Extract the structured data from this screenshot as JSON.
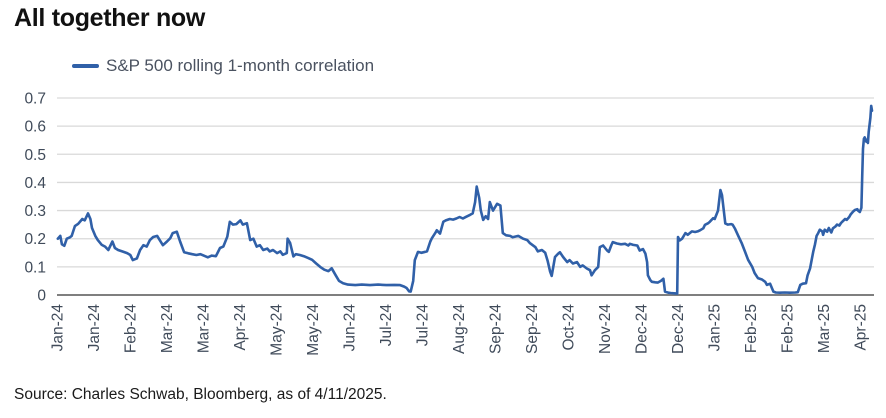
{
  "title": "All together now",
  "legend": {
    "label": "S&P 500 rolling 1-month correlation"
  },
  "source": "Source: Charles Schwab, Bloomberg, as of 4/11/2025.",
  "colors": {
    "line": "#3060A8",
    "grid": "#D9D9D9",
    "zero_axis": "#7F7F7F",
    "tick_text": "#404B5A",
    "legend_text": "#4A5260",
    "title_text": "#111111"
  },
  "chart_data": {
    "type": "line",
    "title": "All together now",
    "series_name": "S&P 500 rolling 1-month correlation",
    "xlabel": "",
    "ylabel": "",
    "ylim": [
      0,
      0.7
    ],
    "yticks": [
      0,
      0.1,
      0.2,
      0.3,
      0.4,
      0.5,
      0.6,
      0.7
    ],
    "ytick_labels": [
      "0",
      "0.1",
      "0.2",
      "0.3",
      "0.4",
      "0.5",
      "0.6",
      "0.7"
    ],
    "xtick_labels": [
      "Jan-24",
      "Jan-24",
      "Feb-24",
      "Mar-24",
      "Mar-24",
      "Apr-24",
      "May-24",
      "May-24",
      "Jun-24",
      "Jul-24",
      "Jul-24",
      "Aug-24",
      "Sep-24",
      "Sep-24",
      "Oct-24",
      "Nov-24",
      "Dec-24",
      "Dec-24",
      "Jan-25",
      "Feb-25",
      "Feb-25",
      "Mar-25",
      "Apr-25"
    ],
    "grid": "horizontal",
    "legend_position": "top-left",
    "x_unit": "fraction of time axis from Jan-24 to Apr-25 (daily rolling correlation)",
    "points": [
      [
        0.001,
        0.2
      ],
      [
        0.004,
        0.21
      ],
      [
        0.006,
        0.18
      ],
      [
        0.009,
        0.175
      ],
      [
        0.012,
        0.2
      ],
      [
        0.016,
        0.205
      ],
      [
        0.018,
        0.21
      ],
      [
        0.022,
        0.245
      ],
      [
        0.026,
        0.253
      ],
      [
        0.031,
        0.27
      ],
      [
        0.034,
        0.265
      ],
      [
        0.038,
        0.29
      ],
      [
        0.041,
        0.27
      ],
      [
        0.043,
        0.238
      ],
      [
        0.047,
        0.21
      ],
      [
        0.05,
        0.195
      ],
      [
        0.055,
        0.178
      ],
      [
        0.059,
        0.172
      ],
      [
        0.063,
        0.16
      ],
      [
        0.068,
        0.19
      ],
      [
        0.071,
        0.167
      ],
      [
        0.075,
        0.16
      ],
      [
        0.08,
        0.155
      ],
      [
        0.086,
        0.149
      ],
      [
        0.09,
        0.142
      ],
      [
        0.093,
        0.124
      ],
      [
        0.098,
        0.13
      ],
      [
        0.102,
        0.16
      ],
      [
        0.106,
        0.177
      ],
      [
        0.11,
        0.172
      ],
      [
        0.114,
        0.195
      ],
      [
        0.118,
        0.206
      ],
      [
        0.123,
        0.21
      ],
      [
        0.126,
        0.195
      ],
      [
        0.13,
        0.177
      ],
      [
        0.135,
        0.19
      ],
      [
        0.139,
        0.202
      ],
      [
        0.142,
        0.22
      ],
      [
        0.147,
        0.225
      ],
      [
        0.151,
        0.19
      ],
      [
        0.156,
        0.152
      ],
      [
        0.161,
        0.148
      ],
      [
        0.166,
        0.145
      ],
      [
        0.171,
        0.142
      ],
      [
        0.176,
        0.145
      ],
      [
        0.18,
        0.14
      ],
      [
        0.185,
        0.134
      ],
      [
        0.19,
        0.14
      ],
      [
        0.195,
        0.138
      ],
      [
        0.2,
        0.167
      ],
      [
        0.204,
        0.172
      ],
      [
        0.209,
        0.207
      ],
      [
        0.212,
        0.26
      ],
      [
        0.216,
        0.25
      ],
      [
        0.22,
        0.252
      ],
      [
        0.225,
        0.265
      ],
      [
        0.228,
        0.25
      ],
      [
        0.233,
        0.255
      ],
      [
        0.237,
        0.195
      ],
      [
        0.241,
        0.2
      ],
      [
        0.245,
        0.172
      ],
      [
        0.249,
        0.177
      ],
      [
        0.253,
        0.16
      ],
      [
        0.258,
        0.165
      ],
      [
        0.261,
        0.155
      ],
      [
        0.265,
        0.16
      ],
      [
        0.27,
        0.149
      ],
      [
        0.274,
        0.155
      ],
      [
        0.277,
        0.143
      ],
      [
        0.282,
        0.149
      ],
      [
        0.283,
        0.2
      ],
      [
        0.286,
        0.185
      ],
      [
        0.29,
        0.137
      ],
      [
        0.293,
        0.145
      ],
      [
        0.298,
        0.142
      ],
      [
        0.303,
        0.138
      ],
      [
        0.308,
        0.132
      ],
      [
        0.313,
        0.125
      ],
      [
        0.318,
        0.112
      ],
      [
        0.323,
        0.1
      ],
      [
        0.328,
        0.09
      ],
      [
        0.333,
        0.085
      ],
      [
        0.337,
        0.095
      ],
      [
        0.342,
        0.07
      ],
      [
        0.346,
        0.05
      ],
      [
        0.351,
        0.042
      ],
      [
        0.357,
        0.037
      ],
      [
        0.366,
        0.035
      ],
      [
        0.374,
        0.037
      ],
      [
        0.384,
        0.035
      ],
      [
        0.394,
        0.037
      ],
      [
        0.404,
        0.035
      ],
      [
        0.414,
        0.036
      ],
      [
        0.421,
        0.035
      ],
      [
        0.426,
        0.03
      ],
      [
        0.429,
        0.025
      ],
      [
        0.432,
        0.013
      ],
      [
        0.434,
        0.012
      ],
      [
        0.437,
        0.05
      ],
      [
        0.439,
        0.124
      ],
      [
        0.443,
        0.153
      ],
      [
        0.447,
        0.15
      ],
      [
        0.45,
        0.152
      ],
      [
        0.454,
        0.155
      ],
      [
        0.458,
        0.19
      ],
      [
        0.46,
        0.202
      ],
      [
        0.464,
        0.22
      ],
      [
        0.466,
        0.23
      ],
      [
        0.47,
        0.218
      ],
      [
        0.474,
        0.26
      ],
      [
        0.477,
        0.265
      ],
      [
        0.482,
        0.27
      ],
      [
        0.486,
        0.268
      ],
      [
        0.49,
        0.272
      ],
      [
        0.494,
        0.277
      ],
      [
        0.498,
        0.272
      ],
      [
        0.502,
        0.278
      ],
      [
        0.507,
        0.285
      ],
      [
        0.51,
        0.29
      ],
      [
        0.513,
        0.33
      ],
      [
        0.515,
        0.385
      ],
      [
        0.518,
        0.345
      ],
      [
        0.52,
        0.3
      ],
      [
        0.523,
        0.267
      ],
      [
        0.526,
        0.28
      ],
      [
        0.529,
        0.27
      ],
      [
        0.531,
        0.33
      ],
      [
        0.535,
        0.3
      ],
      [
        0.54,
        0.324
      ],
      [
        0.544,
        0.318
      ],
      [
        0.547,
        0.22
      ],
      [
        0.551,
        0.212
      ],
      [
        0.556,
        0.21
      ],
      [
        0.559,
        0.205
      ],
      [
        0.566,
        0.21
      ],
      [
        0.572,
        0.2
      ],
      [
        0.577,
        0.195
      ],
      [
        0.58,
        0.185
      ],
      [
        0.587,
        0.17
      ],
      [
        0.59,
        0.155
      ],
      [
        0.595,
        0.16
      ],
      [
        0.599,
        0.15
      ],
      [
        0.602,
        0.122
      ],
      [
        0.605,
        0.083
      ],
      [
        0.607,
        0.068
      ],
      [
        0.611,
        0.135
      ],
      [
        0.615,
        0.147
      ],
      [
        0.617,
        0.152
      ],
      [
        0.621,
        0.135
      ],
      [
        0.626,
        0.117
      ],
      [
        0.629,
        0.124
      ],
      [
        0.633,
        0.112
      ],
      [
        0.638,
        0.117
      ],
      [
        0.642,
        0.1
      ],
      [
        0.645,
        0.105
      ],
      [
        0.65,
        0.094
      ],
      [
        0.654,
        0.088
      ],
      [
        0.656,
        0.07
      ],
      [
        0.66,
        0.088
      ],
      [
        0.664,
        0.1
      ],
      [
        0.666,
        0.17
      ],
      [
        0.67,
        0.176
      ],
      [
        0.675,
        0.158
      ],
      [
        0.677,
        0.153
      ],
      [
        0.68,
        0.176
      ],
      [
        0.682,
        0.188
      ],
      [
        0.687,
        0.183
      ],
      [
        0.692,
        0.18
      ],
      [
        0.697,
        0.182
      ],
      [
        0.701,
        0.176
      ],
      [
        0.703,
        0.182
      ],
      [
        0.707,
        0.178
      ],
      [
        0.712,
        0.176
      ],
      [
        0.715,
        0.158
      ],
      [
        0.719,
        0.163
      ],
      [
        0.722,
        0.147
      ],
      [
        0.724,
        0.117
      ],
      [
        0.725,
        0.07
      ],
      [
        0.728,
        0.053
      ],
      [
        0.73,
        0.047
      ],
      [
        0.734,
        0.045
      ],
      [
        0.737,
        0.044
      ],
      [
        0.741,
        0.05
      ],
      [
        0.744,
        0.058
      ],
      [
        0.746,
        0.012
      ],
      [
        0.75,
        0.008
      ],
      [
        0.753,
        0.007
      ],
      [
        0.757,
        0.006
      ],
      [
        0.761,
        0.005
      ],
      [
        0.762,
        0.206
      ],
      [
        0.764,
        0.194
      ],
      [
        0.767,
        0.2
      ],
      [
        0.771,
        0.22
      ],
      [
        0.774,
        0.214
      ],
      [
        0.779,
        0.226
      ],
      [
        0.783,
        0.224
      ],
      [
        0.786,
        0.226
      ],
      [
        0.789,
        0.23
      ],
      [
        0.793,
        0.237
      ],
      [
        0.795,
        0.249
      ],
      [
        0.799,
        0.255
      ],
      [
        0.801,
        0.26
      ],
      [
        0.805,
        0.273
      ],
      [
        0.807,
        0.27
      ],
      [
        0.811,
        0.3
      ],
      [
        0.814,
        0.373
      ],
      [
        0.816,
        0.355
      ],
      [
        0.82,
        0.254
      ],
      [
        0.823,
        0.25
      ],
      [
        0.827,
        0.252
      ],
      [
        0.829,
        0.25
      ],
      [
        0.832,
        0.235
      ],
      [
        0.836,
        0.21
      ],
      [
        0.84,
        0.185
      ],
      [
        0.844,
        0.155
      ],
      [
        0.848,
        0.125
      ],
      [
        0.853,
        0.1
      ],
      [
        0.856,
        0.078
      ],
      [
        0.86,
        0.06
      ],
      [
        0.865,
        0.055
      ],
      [
        0.869,
        0.047
      ],
      [
        0.871,
        0.036
      ],
      [
        0.875,
        0.04
      ],
      [
        0.879,
        0.012
      ],
      [
        0.882,
        0.009
      ],
      [
        0.887,
        0.008
      ],
      [
        0.893,
        0.009
      ],
      [
        0.899,
        0.008
      ],
      [
        0.906,
        0.009
      ],
      [
        0.909,
        0.01
      ],
      [
        0.912,
        0.036
      ],
      [
        0.915,
        0.04
      ],
      [
        0.919,
        0.042
      ],
      [
        0.921,
        0.07
      ],
      [
        0.924,
        0.095
      ],
      [
        0.926,
        0.125
      ],
      [
        0.928,
        0.155
      ],
      [
        0.93,
        0.18
      ],
      [
        0.932,
        0.21
      ],
      [
        0.934,
        0.22
      ],
      [
        0.936,
        0.232
      ],
      [
        0.939,
        0.226
      ],
      [
        0.94,
        0.214
      ],
      [
        0.942,
        0.232
      ],
      [
        0.945,
        0.225
      ],
      [
        0.947,
        0.238
      ],
      [
        0.95,
        0.222
      ],
      [
        0.952,
        0.237
      ],
      [
        0.955,
        0.243
      ],
      [
        0.957,
        0.25
      ],
      [
        0.96,
        0.247
      ],
      [
        0.962,
        0.256
      ],
      [
        0.964,
        0.262
      ],
      [
        0.967,
        0.27
      ],
      [
        0.969,
        0.267
      ],
      [
        0.972,
        0.277
      ],
      [
        0.974,
        0.287
      ],
      [
        0.977,
        0.297
      ],
      [
        0.979,
        0.302
      ],
      [
        0.982,
        0.305
      ],
      [
        0.983,
        0.3
      ],
      [
        0.985,
        0.295
      ],
      [
        0.987,
        0.31
      ],
      [
        0.988,
        0.42
      ],
      [
        0.989,
        0.52
      ],
      [
        0.99,
        0.555
      ],
      [
        0.991,
        0.56
      ],
      [
        0.993,
        0.545
      ],
      [
        0.994,
        0.552
      ],
      [
        0.995,
        0.54
      ],
      [
        0.996,
        0.58
      ],
      [
        0.998,
        0.63
      ],
      [
        0.999,
        0.672
      ],
      [
        1.0,
        0.655
      ]
    ]
  }
}
